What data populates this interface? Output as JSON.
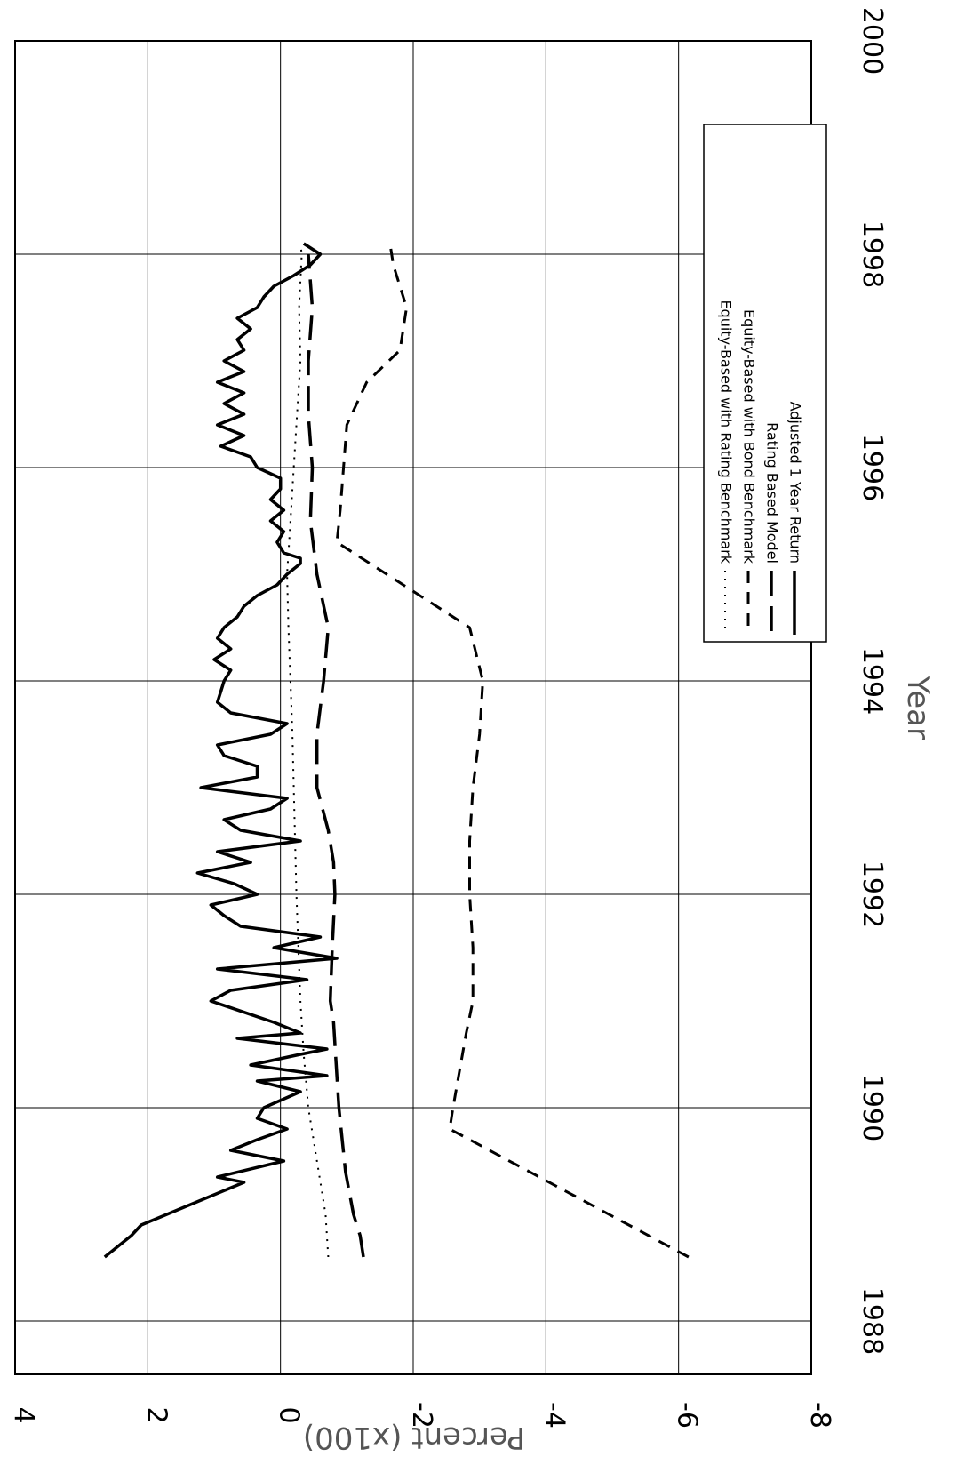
{
  "chart_data": {
    "type": "line",
    "xlabel": "Year",
    "ylabel": "Percent (x100)",
    "xlim": [
      1987.5,
      2000
    ],
    "ylim": [
      -8,
      4
    ],
    "x_ticks": [
      1988,
      1990,
      1992,
      1994,
      1996,
      1998,
      2000
    ],
    "y_ticks": [
      4,
      2,
      0,
      -2,
      -4,
      -6,
      -8
    ],
    "x_tick_labels": [
      "1988",
      "1990",
      "1992",
      "1994",
      "1996",
      "1998",
      "2000"
    ],
    "y_tick_labels": [
      "4",
      "2",
      "0",
      "-2",
      "-4",
      "-6",
      "-8"
    ],
    "grid": true,
    "orientation": "rotated 90 degrees clockwise",
    "legend_position": "top-right",
    "series": [
      {
        "name": "Equity-Based with Rating Benchmark",
        "style": "dotted",
        "x": [
          1988.6,
          1989.0,
          1989.5,
          1990.0,
          1990.5,
          1991.0,
          1991.5,
          1992.0,
          1992.5,
          1993.0,
          1993.5,
          1994.0,
          1994.5,
          1995.0,
          1995.5,
          1996.0,
          1996.5,
          1997.0,
          1997.5,
          1998.0,
          1998.1
        ],
        "y": [
          -0.72,
          -0.68,
          -0.55,
          -0.42,
          -0.35,
          -0.3,
          -0.27,
          -0.24,
          -0.22,
          -0.2,
          -0.18,
          -0.15,
          -0.12,
          -0.1,
          -0.15,
          -0.2,
          -0.25,
          -0.3,
          -0.28,
          -0.32,
          -0.3
        ]
      },
      {
        "name": "Equity-Based with Bond Benchmark",
        "style": "dashed",
        "x": [
          1988.6,
          1989.8,
          1990.0,
          1990.7,
          1991.0,
          1991.5,
          1992.0,
          1992.5,
          1993.0,
          1993.5,
          1994.0,
          1994.5,
          1995.3,
          1995.6,
          1996.0,
          1996.4,
          1996.8,
          1997.1,
          1997.5,
          1997.9,
          1998.1
        ],
        "y": [
          -6.15,
          -2.55,
          -2.6,
          -2.8,
          -2.9,
          -2.9,
          -2.85,
          -2.85,
          -2.9,
          -3.0,
          -3.05,
          -2.85,
          -0.85,
          -0.9,
          -0.95,
          -1.0,
          -1.3,
          -1.8,
          -1.9,
          -1.7,
          -1.65
        ]
      },
      {
        "name": "Rating Based Model",
        "style": "long-dash",
        "x": [
          1988.6,
          1988.8,
          1989.0,
          1989.4,
          1990.0,
          1990.3,
          1990.8,
          1991.0,
          1991.5,
          1992.0,
          1992.3,
          1992.6,
          1993.0,
          1993.5,
          1994.0,
          1994.5,
          1995.0,
          1995.5,
          1996.0,
          1996.5,
          1997.0,
          1997.5,
          1998.0
        ],
        "y": [
          -1.25,
          -1.2,
          -1.1,
          -0.98,
          -0.88,
          -0.85,
          -0.8,
          -0.75,
          -0.78,
          -0.82,
          -0.8,
          -0.72,
          -0.55,
          -0.55,
          -0.65,
          -0.72,
          -0.55,
          -0.45,
          -0.48,
          -0.42,
          -0.42,
          -0.48,
          -0.42
        ]
      },
      {
        "name": "Adjusted 1 Year Return",
        "style": "solid",
        "x": [
          1988.6,
          1988.8,
          1988.9,
          1989.3,
          1989.35,
          1989.5,
          1989.55,
          1989.6,
          1989.7,
          1989.8,
          1989.9,
          1990.0,
          1990.15,
          1990.25,
          1990.3,
          1990.4,
          1990.5,
          1990.55,
          1990.65,
          1990.7,
          1990.8,
          1991.0,
          1991.1,
          1991.2,
          1991.3,
          1991.4,
          1991.5,
          1991.6,
          1991.7,
          1991.8,
          1991.9,
          1992.0,
          1992.1,
          1992.2,
          1992.3,
          1992.4,
          1992.5,
          1992.6,
          1992.7,
          1992.8,
          1992.9,
          1993.0,
          1993.1,
          1993.2,
          1993.3,
          1993.4,
          1993.5,
          1993.6,
          1993.7,
          1993.8,
          1993.9,
          1994.0,
          1994.1,
          1994.2,
          1994.3,
          1994.4,
          1994.5,
          1994.6,
          1994.7,
          1994.8,
          1994.9,
          1995.0,
          1995.1,
          1995.15,
          1995.2,
          1995.3,
          1995.4,
          1995.5,
          1995.6,
          1995.7,
          1995.8,
          1995.9,
          1996.0,
          1996.1,
          1996.2,
          1996.3,
          1996.4,
          1996.5,
          1996.6,
          1996.7,
          1996.8,
          1996.9,
          1997.0,
          1997.1,
          1997.2,
          1997.3,
          1997.4,
          1997.5,
          1997.6,
          1997.7,
          1997.8,
          1997.9,
          1998.0,
          1998.1
        ],
        "y": [
          2.65,
          2.25,
          2.1,
          0.55,
          0.95,
          -0.05,
          0.35,
          0.75,
          0.35,
          -0.1,
          0.35,
          0.25,
          -0.3,
          0.35,
          -0.7,
          0.45,
          -0.3,
          -0.7,
          0.65,
          -0.3,
          0.1,
          1.05,
          0.75,
          -0.4,
          0.95,
          -0.85,
          0.1,
          -0.6,
          0.6,
          0.85,
          1.05,
          0.35,
          0.7,
          1.25,
          0.45,
          0.95,
          -0.3,
          0.6,
          0.85,
          0.15,
          -0.1,
          1.2,
          0.35,
          0.35,
          0.85,
          0.95,
          0.15,
          -0.1,
          0.75,
          0.95,
          0.9,
          0.85,
          0.75,
          1.0,
          0.75,
          0.95,
          0.85,
          0.65,
          0.55,
          0.35,
          0.05,
          -0.1,
          -0.3,
          -0.3,
          -0.05,
          0.05,
          -0.05,
          0.15,
          -0.05,
          0.15,
          0.0,
          0.0,
          0.35,
          0.45,
          0.9,
          0.55,
          0.95,
          0.55,
          0.85,
          0.55,
          0.95,
          0.55,
          0.85,
          0.55,
          0.65,
          0.45,
          0.65,
          0.35,
          0.25,
          0.1,
          -0.2,
          -0.45,
          -0.6,
          -0.35
        ]
      }
    ]
  }
}
